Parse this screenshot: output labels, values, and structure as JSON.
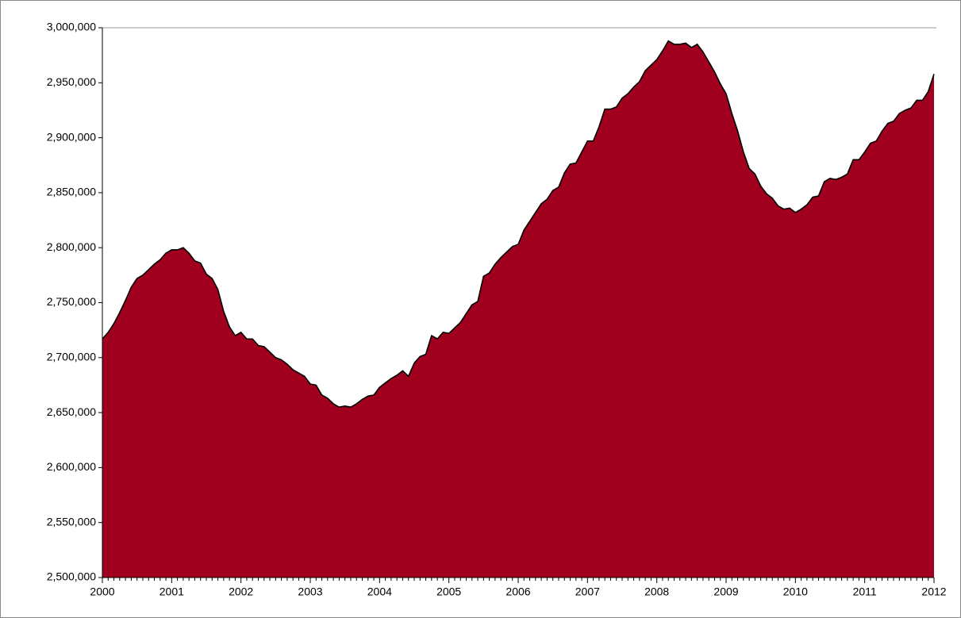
{
  "chart_data": {
    "type": "area",
    "categories": [
      "2000",
      null,
      null,
      null,
      null,
      null,
      null,
      null,
      null,
      null,
      null,
      null,
      "2001",
      null,
      null,
      null,
      null,
      null,
      null,
      null,
      null,
      null,
      null,
      null,
      "2002",
      null,
      null,
      null,
      null,
      null,
      null,
      null,
      null,
      null,
      null,
      null,
      "2003",
      null,
      null,
      null,
      null,
      null,
      null,
      null,
      null,
      null,
      null,
      null,
      "2004",
      null,
      null,
      null,
      null,
      null,
      null,
      null,
      null,
      null,
      null,
      null,
      "2005",
      null,
      null,
      null,
      null,
      null,
      null,
      null,
      null,
      null,
      null,
      null,
      "2006",
      null,
      null,
      null,
      null,
      null,
      null,
      null,
      null,
      null,
      null,
      null,
      "2007",
      null,
      null,
      null,
      null,
      null,
      null,
      null,
      null,
      null,
      null,
      null,
      "2008",
      null,
      null,
      null,
      null,
      null,
      null,
      null,
      null,
      null,
      null,
      null,
      "2009",
      null,
      null,
      null,
      null,
      null,
      null,
      null,
      null,
      null,
      null,
      null,
      "2010",
      null,
      null,
      null,
      null,
      null,
      null,
      null,
      null,
      null,
      null,
      null,
      "2011",
      null,
      null,
      null,
      null,
      null,
      null,
      null,
      null,
      null,
      null,
      null,
      "2012"
    ],
    "values": [
      2717000,
      2723000,
      2731000,
      2741000,
      2752000,
      2764000,
      2772000,
      2775000,
      2780000,
      2785000,
      2789000,
      2795000,
      2798000,
      2798000,
      2800000,
      2795000,
      2788000,
      2786000,
      2776000,
      2772000,
      2762000,
      2742000,
      2728000,
      2720000,
      2723000,
      2717000,
      2717000,
      2711000,
      2710000,
      2705000,
      2700000,
      2698000,
      2694000,
      2689000,
      2686000,
      2683000,
      2676000,
      2675000,
      2666000,
      2663000,
      2658000,
      2655000,
      2656000,
      2655000,
      2658000,
      2662000,
      2665000,
      2666000,
      2673000,
      2677000,
      2681000,
      2684000,
      2688000,
      2683000,
      2695000,
      2701000,
      2703000,
      2720000,
      2717000,
      2723000,
      2722000,
      2727000,
      2732000,
      2740000,
      2748000,
      2751000,
      2774000,
      2777000,
      2785000,
      2791000,
      2796000,
      2801000,
      2803000,
      2816000,
      2824000,
      2832000,
      2840000,
      2844000,
      2852000,
      2855000,
      2868000,
      2876000,
      2877000,
      2887000,
      2897000,
      2897000,
      2910000,
      2926000,
      2926000,
      2928000,
      2936000,
      2940000,
      2946000,
      2951000,
      2961000,
      2966000,
      2971000,
      2979000,
      2988000,
      2985000,
      2985000,
      2986000,
      2982000,
      2985000,
      2978000,
      2969000,
      2960000,
      2949000,
      2940000,
      2922000,
      2906000,
      2887000,
      2872000,
      2867000,
      2856000,
      2849000,
      2845000,
      2838000,
      2835000,
      2836000,
      2832000,
      2835000,
      2839000,
      2846000,
      2847000,
      2860000,
      2863000,
      2862000,
      2864000,
      2867000,
      2880000,
      2880000,
      2887000,
      2895000,
      2897000,
      2906000,
      2913000,
      2915000,
      2922000,
      2925000,
      2927000,
      2934000,
      2934000,
      2942000,
      2958000
    ],
    "color": "#a0001e",
    "ylim": [
      2500000,
      3000000
    ],
    "yticks": [
      {
        "value": 2500000,
        "label": "2,500,000"
      },
      {
        "value": 2550000,
        "label": "2,550,000"
      },
      {
        "value": 2600000,
        "label": "2,600,000"
      },
      {
        "value": 2650000,
        "label": "2,650,000"
      },
      {
        "value": 2700000,
        "label": "2,700,000"
      },
      {
        "value": 2750000,
        "label": "2,750,000"
      },
      {
        "value": 2800000,
        "label": "2,800,000"
      },
      {
        "value": 2850000,
        "label": "2,850,000"
      },
      {
        "value": 2900000,
        "label": "2,900,000"
      },
      {
        "value": 2950000,
        "label": "2,950,000"
      },
      {
        "value": 3000000,
        "label": "3,000,000"
      }
    ],
    "grid": false
  }
}
